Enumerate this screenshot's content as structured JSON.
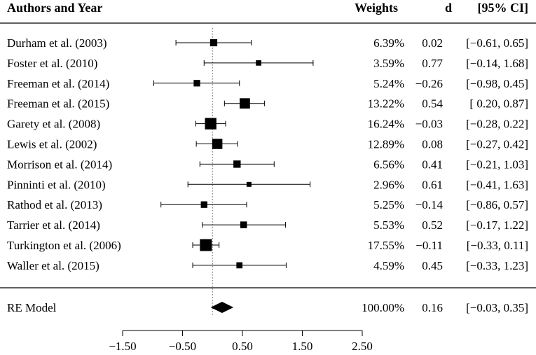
{
  "chart_data": {
    "type": "forest",
    "headers": {
      "study": "Authors and Year",
      "weights": "Weights",
      "effect": "d",
      "ci": "[95% CI]"
    },
    "studies": [
      {
        "label": "Durham et al. (2003)",
        "weight": 6.39,
        "weight_text": "6.39%",
        "d": 0.02,
        "lo": -0.61,
        "hi": 0.65,
        "d_text": "0.02",
        "ci_text": "[−0.61, 0.65]"
      },
      {
        "label": "Foster et al. (2010)",
        "weight": 3.59,
        "weight_text": "3.59%",
        "d": 0.77,
        "lo": -0.14,
        "hi": 1.68,
        "d_text": "0.77",
        "ci_text": "[−0.14, 1.68]"
      },
      {
        "label": "Freeman et al. (2014)",
        "weight": 5.24,
        "weight_text": "5.24%",
        "d": -0.26,
        "lo": -0.98,
        "hi": 0.45,
        "d_text": "−0.26",
        "ci_text": "[−0.98, 0.45]"
      },
      {
        "label": "Freeman et al. (2015)",
        "weight": 13.22,
        "weight_text": "13.22%",
        "d": 0.54,
        "lo": 0.2,
        "hi": 0.87,
        "d_text": "0.54",
        "ci_text": "[ 0.20, 0.87]"
      },
      {
        "label": "Garety et al. (2008)",
        "weight": 16.24,
        "weight_text": "16.24%",
        "d": -0.03,
        "lo": -0.28,
        "hi": 0.22,
        "d_text": "−0.03",
        "ci_text": "[−0.28, 0.22]"
      },
      {
        "label": "Lewis et al. (2002)",
        "weight": 12.89,
        "weight_text": "12.89%",
        "d": 0.08,
        "lo": -0.27,
        "hi": 0.42,
        "d_text": "0.08",
        "ci_text": "[−0.27, 0.42]"
      },
      {
        "label": "Morrison et al. (2014)",
        "weight": 6.56,
        "weight_text": "6.56%",
        "d": 0.41,
        "lo": -0.21,
        "hi": 1.03,
        "d_text": "0.41",
        "ci_text": "[−0.21, 1.03]"
      },
      {
        "label": "Pinninti et al. (2010)",
        "weight": 2.96,
        "weight_text": "2.96%",
        "d": 0.61,
        "lo": -0.41,
        "hi": 1.63,
        "d_text": "0.61",
        "ci_text": "[−0.41, 1.63]"
      },
      {
        "label": "Rathod et al. (2013)",
        "weight": 5.25,
        "weight_text": "5.25%",
        "d": -0.14,
        "lo": -0.86,
        "hi": 0.57,
        "d_text": "−0.14",
        "ci_text": "[−0.86, 0.57]"
      },
      {
        "label": "Tarrier et al. (2014)",
        "weight": 5.53,
        "weight_text": "5.53%",
        "d": 0.52,
        "lo": -0.17,
        "hi": 1.22,
        "d_text": "0.52",
        "ci_text": "[−0.17, 1.22]"
      },
      {
        "label": "Turkington et al. (2006)",
        "weight": 17.55,
        "weight_text": "17.55%",
        "d": -0.11,
        "lo": -0.33,
        "hi": 0.11,
        "d_text": "−0.11",
        "ci_text": "[−0.33, 0.11]"
      },
      {
        "label": "Waller et al. (2015)",
        "weight": 4.59,
        "weight_text": "4.59%",
        "d": 0.45,
        "lo": -0.33,
        "hi": 1.23,
        "d_text": "0.45",
        "ci_text": "[−0.33, 1.23]"
      }
    ],
    "summary": {
      "label": "RE Model",
      "weight": 100.0,
      "weight_text": "100.00%",
      "d": 0.16,
      "lo": -0.03,
      "hi": 0.35,
      "d_text": "0.16",
      "ci_text": "[−0.03, 0.35]"
    },
    "x_ticks": [
      -1.5,
      -0.5,
      0.5,
      1.5,
      2.5
    ],
    "x_tick_labels": [
      "−1.50",
      "−0.50",
      "0.50",
      "1.50",
      "2.50"
    ],
    "xlim": [
      -1.5,
      2.5
    ],
    "reference_line": 0,
    "xlabel": "",
    "grid": false
  }
}
